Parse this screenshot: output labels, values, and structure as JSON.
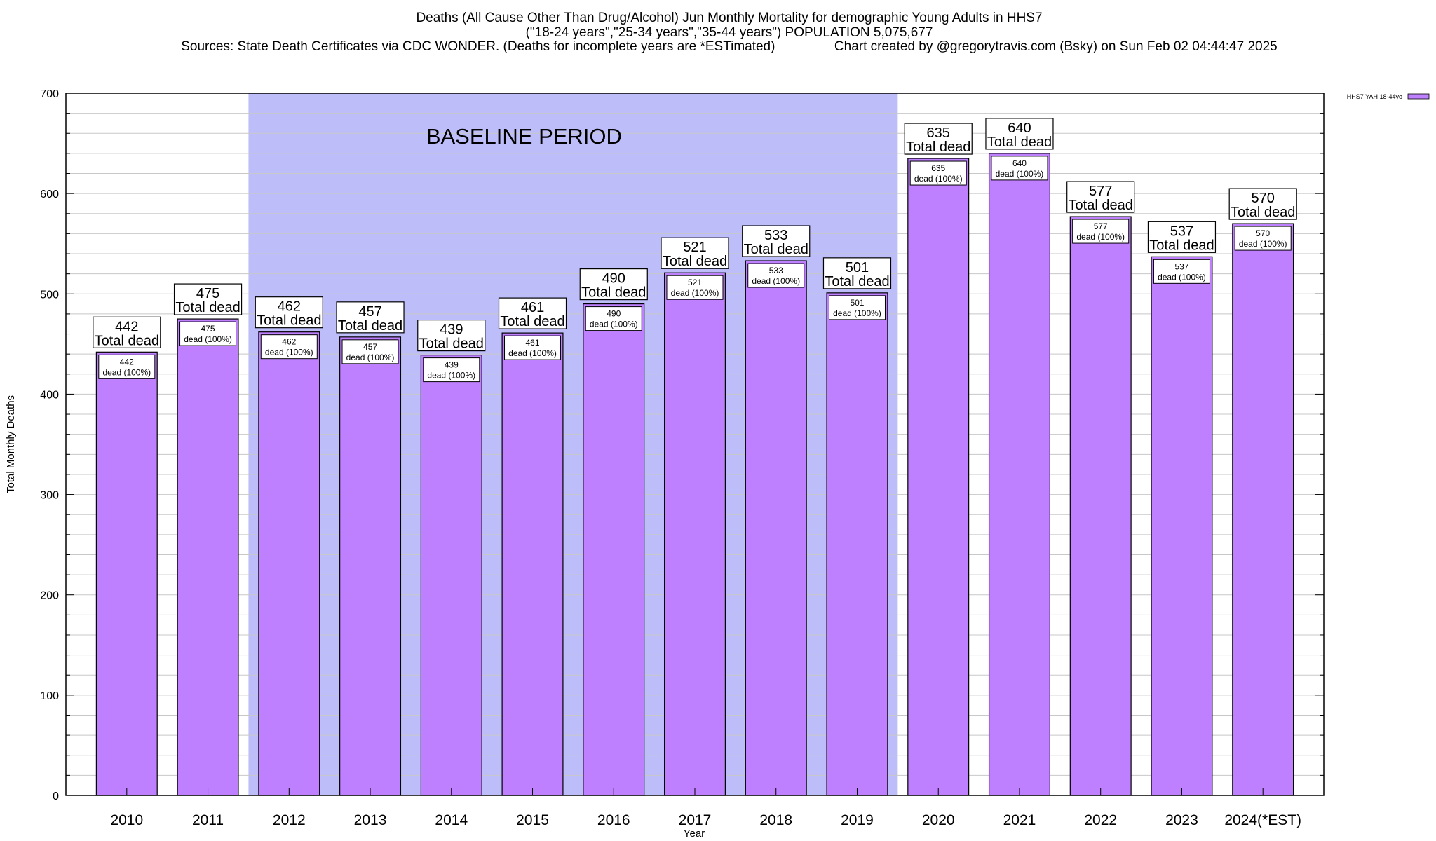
{
  "title_lines": [
    "Deaths (All Cause Other Than Drug/Alcohol) Jun Monthly Mortality for demographic Young Adults in HHS7",
    "(\"18-24 years\",\"25-34 years\",\"35-44 years\") POPULATION 5,075,677",
    "Sources: State Death Certificates via CDC WONDER. (Deaths for incomplete years are *ESTimated)                Chart created by @gregorytravis.com (Bsky) on Sun Feb 02 04:44:47 2025"
  ],
  "baseline_label": "BASELINE PERIOD",
  "colors": {
    "bar_fill": "#bf80ff",
    "baseline_fill": "#bdbdfa",
    "grid": "#c8c8c8"
  },
  "chart_data": {
    "type": "bar",
    "categories": [
      "2010",
      "2011",
      "2012",
      "2013",
      "2014",
      "2015",
      "2016",
      "2017",
      "2018",
      "2019",
      "2020",
      "2021",
      "2022",
      "2023",
      "2024(*EST)"
    ],
    "series": [
      {
        "name": "HHS7 YAH 18-44yo",
        "values": [
          442,
          475,
          462,
          457,
          439,
          461,
          490,
          521,
          533,
          501,
          635,
          640,
          577,
          537,
          570
        ]
      }
    ],
    "ylim": [
      0,
      700
    ],
    "yticks": [
      0,
      100,
      200,
      300,
      400,
      500,
      600,
      700
    ],
    "ylabel": "Total Monthly Deaths",
    "xlabel": "Year",
    "baseline_period": [
      "2012",
      "2019"
    ],
    "total_label_suffix": "Total dead",
    "inner_label_suffix": "dead (100%)",
    "legend": "HHS7 YAH 18-44yo",
    "legend_position": "top-right"
  }
}
